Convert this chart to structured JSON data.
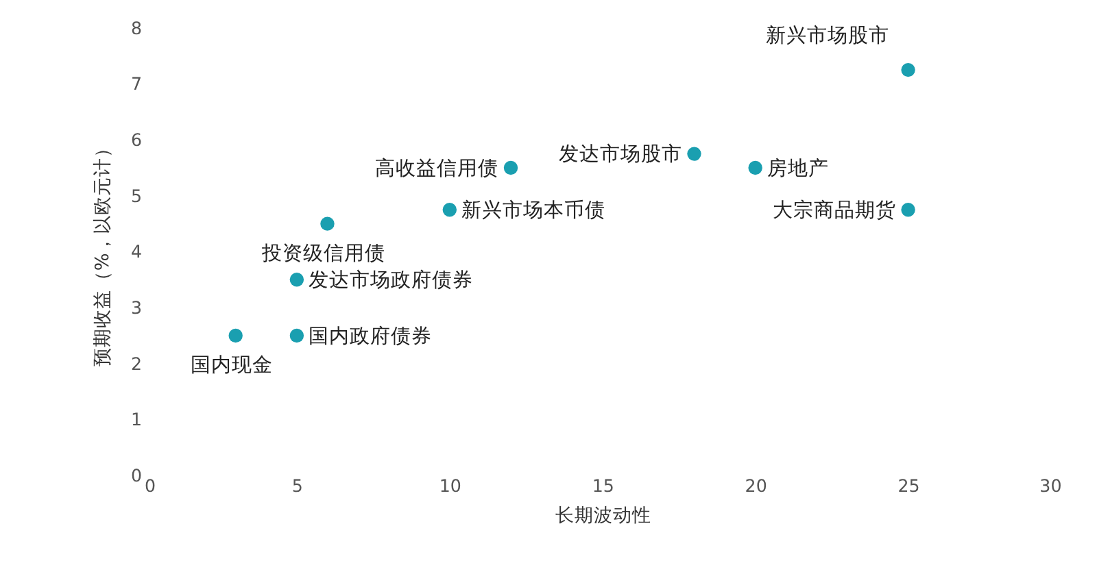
{
  "chart_data": {
    "type": "scatter",
    "xlabel": "长期波动性",
    "ylabel": "预期收益（%，以欧元计）",
    "x": [
      3,
      5,
      5,
      6,
      10,
      12,
      18,
      20,
      25,
      25
    ],
    "series": [
      {
        "color": "#1a9fb0",
        "values": [
          2.5,
          2.5,
          3.5,
          4.5,
          4.75,
          5.5,
          5.75,
          5.5,
          7.25,
          4.75
        ]
      }
    ],
    "annotations": [
      {
        "text": "国内现金",
        "x": 3,
        "y": 2.5
      },
      {
        "text": "国内政府债券",
        "x": 5,
        "y": 2.5
      },
      {
        "text": "发达市场政府债券",
        "x": 5,
        "y": 3.5
      },
      {
        "text": "投资级信用债",
        "x": 6,
        "y": 4.5
      },
      {
        "text": "新兴市场本币债",
        "x": 10,
        "y": 4.75
      },
      {
        "text": "高收益信用债",
        "x": 12,
        "y": 5.5
      },
      {
        "text": "发达市场股市",
        "x": 18,
        "y": 5.75
      },
      {
        "text": "房地产",
        "x": 20,
        "y": 5.5
      },
      {
        "text": "新兴市场股市",
        "x": 25,
        "y": 7.25
      },
      {
        "text": "大宗商品期货",
        "x": 25,
        "y": 4.75
      }
    ],
    "xlim": [
      0,
      30
    ],
    "xticks": [
      0,
      5,
      10,
      15,
      20,
      25,
      30
    ],
    "ylim": [
      0,
      8
    ],
    "yticks": [
      0,
      1,
      2,
      3,
      4,
      5,
      6,
      7,
      8
    ],
    "grid": false,
    "marker": "circle"
  }
}
